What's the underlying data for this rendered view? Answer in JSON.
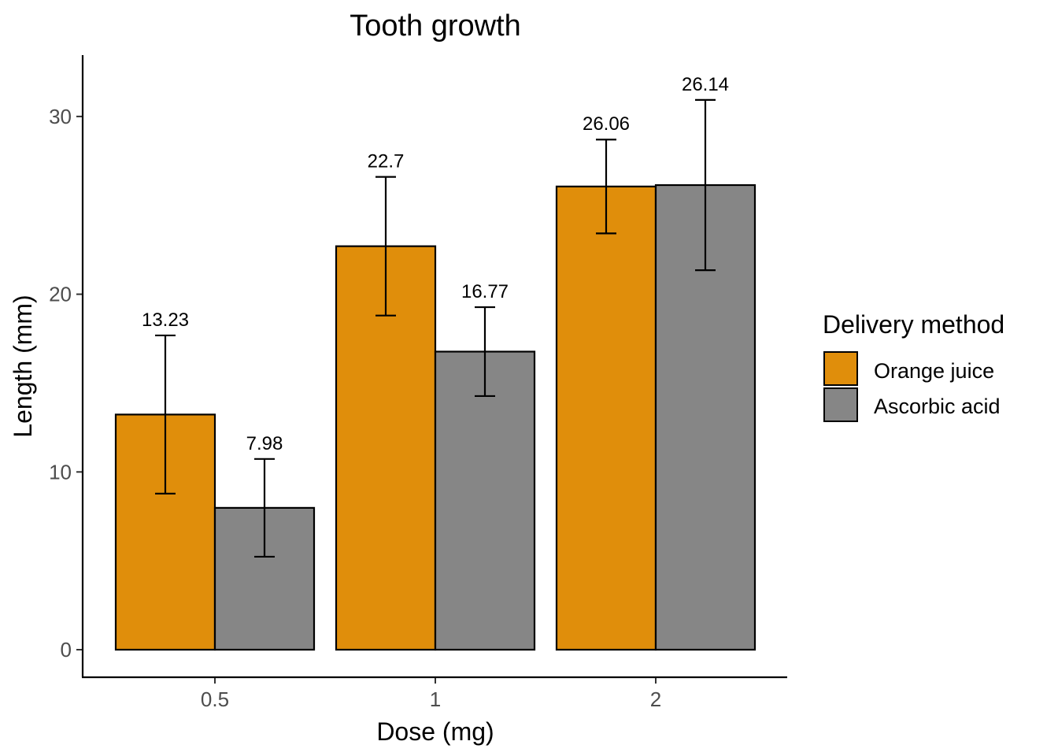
{
  "chart_data": {
    "type": "bar",
    "title": "Tooth growth",
    "xlabel": "Dose (mg)",
    "ylabel": "Length (mm)",
    "categories": [
      "0.5",
      "1",
      "2"
    ],
    "ylim": [
      0,
      33.5
    ],
    "yticks": [
      0,
      10,
      20,
      30
    ],
    "grid": false,
    "legend": {
      "title": "Delivery method",
      "position": "right"
    },
    "series": [
      {
        "name": "Orange juice",
        "color": "#E08E0B",
        "values": [
          13.23,
          22.7,
          26.06
        ],
        "labels": [
          "13.23",
          "22.7",
          "26.06"
        ],
        "error_low": [
          8.78,
          18.8,
          23.42
        ],
        "error_high": [
          17.68,
          26.6,
          28.7
        ]
      },
      {
        "name": "Ascorbic acid",
        "color": "#868686",
        "values": [
          7.98,
          16.77,
          26.14
        ],
        "labels": [
          "7.98",
          "16.77",
          "26.14"
        ],
        "error_low": [
          5.23,
          14.27,
          21.35
        ],
        "error_high": [
          10.73,
          19.27,
          30.93
        ]
      }
    ]
  }
}
